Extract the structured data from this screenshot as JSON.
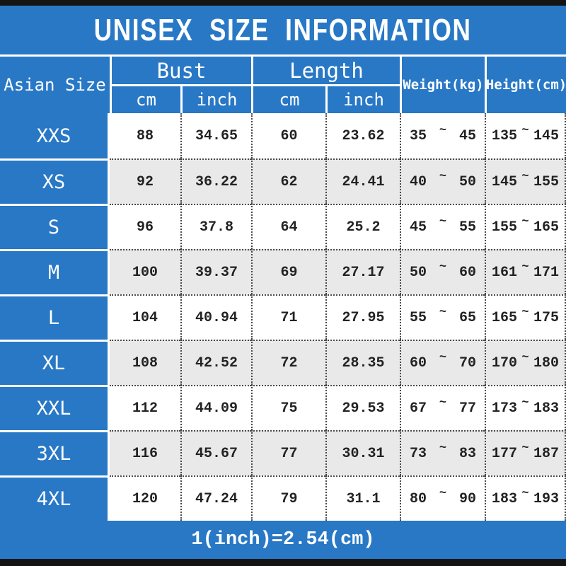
{
  "title": "UNISEX SIZE INFORMATION",
  "header": {
    "size": "Asian Size",
    "bust": "Bust",
    "length": "Length",
    "cm": "cm",
    "inch": "inch",
    "weight": "Weight(kg)",
    "height": "Height(cm)",
    "tilde": "~"
  },
  "footer": "1(inch)=2.54(cm)",
  "colors": {
    "blue": "#2878C6",
    "gray_row": "#E9E9E9",
    "black_bar": "#141414"
  },
  "chart_data": {
    "type": "table",
    "title": "UNISEX SIZE INFORMATION",
    "columns": [
      "Asian Size",
      "Bust cm",
      "Bust inch",
      "Length cm",
      "Length inch",
      "Weight(kg) min",
      "Weight(kg) max",
      "Height(cm) min",
      "Height(cm) max"
    ],
    "rows": [
      [
        "XXS",
        "88",
        "34.65",
        "60",
        "23.62",
        "35",
        "45",
        "135",
        "145"
      ],
      [
        "XS",
        "92",
        "36.22",
        "62",
        "24.41",
        "40",
        "50",
        "145",
        "155"
      ],
      [
        "S",
        "96",
        "37.8",
        "64",
        "25.2",
        "45",
        "55",
        "155",
        "165"
      ],
      [
        "M",
        "100",
        "39.37",
        "69",
        "27.17",
        "50",
        "60",
        "161",
        "171"
      ],
      [
        "L",
        "104",
        "40.94",
        "71",
        "27.95",
        "55",
        "65",
        "165",
        "175"
      ],
      [
        "XL",
        "108",
        "42.52",
        "72",
        "28.35",
        "60",
        "70",
        "170",
        "180"
      ],
      [
        "XXL",
        "112",
        "44.09",
        "75",
        "29.53",
        "67",
        "77",
        "173",
        "183"
      ],
      [
        "3XL",
        "116",
        "45.67",
        "77",
        "30.31",
        "73",
        "83",
        "177",
        "187"
      ],
      [
        "4XL",
        "120",
        "47.24",
        "79",
        "31.1",
        "80",
        "90",
        "183",
        "193"
      ]
    ],
    "footnote": "1(inch)=2.54(cm)"
  }
}
